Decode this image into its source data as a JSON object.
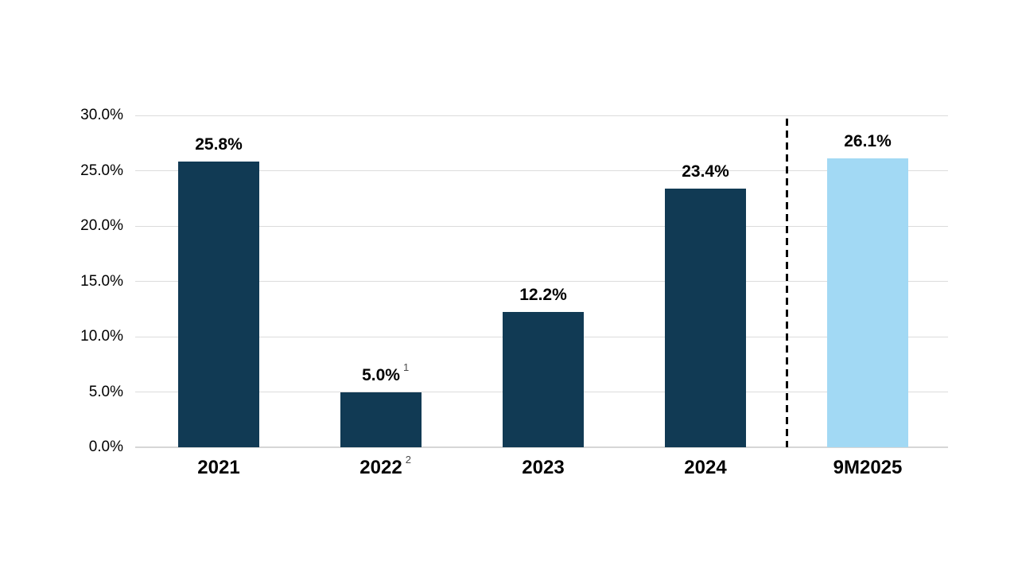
{
  "chart_data": {
    "type": "bar",
    "title": "",
    "xlabel": "",
    "ylabel": "",
    "categories": [
      "2021",
      "2022",
      "2023",
      "2024",
      "9M2025"
    ],
    "values": [
      25.8,
      5.0,
      12.2,
      23.4,
      26.1
    ],
    "bar_labels": [
      "25.8%",
      "5.0%",
      "12.2%",
      "23.4%",
      "26.1%"
    ],
    "bar_label_superscripts": [
      "",
      "1",
      "",
      "",
      ""
    ],
    "category_superscripts": [
      "",
      "2",
      "",
      "",
      ""
    ],
    "ytick_values": [
      0,
      5,
      10,
      15,
      20,
      25,
      30
    ],
    "ytick_labels": [
      "0.0%",
      "5.0%",
      "10.0%",
      "15.0%",
      "20.0%",
      "25.0%",
      "30.0%"
    ],
    "ylim": [
      0,
      30
    ],
    "grid": true,
    "legend": null,
    "separator_after_category": "2024",
    "bar_colors": [
      "#113A54",
      "#113A54",
      "#113A54",
      "#113A54",
      "#A2D9F4"
    ]
  },
  "colors": {
    "bar_navy": "#113A54",
    "bar_light_blue": "#A2D9F4",
    "gridline": "#DCDCDC",
    "axis_line": "#D6D6D6",
    "separator": "#000000",
    "superscript": "#4A4A4A",
    "text": "#000000",
    "background": "#FFFFFF"
  }
}
